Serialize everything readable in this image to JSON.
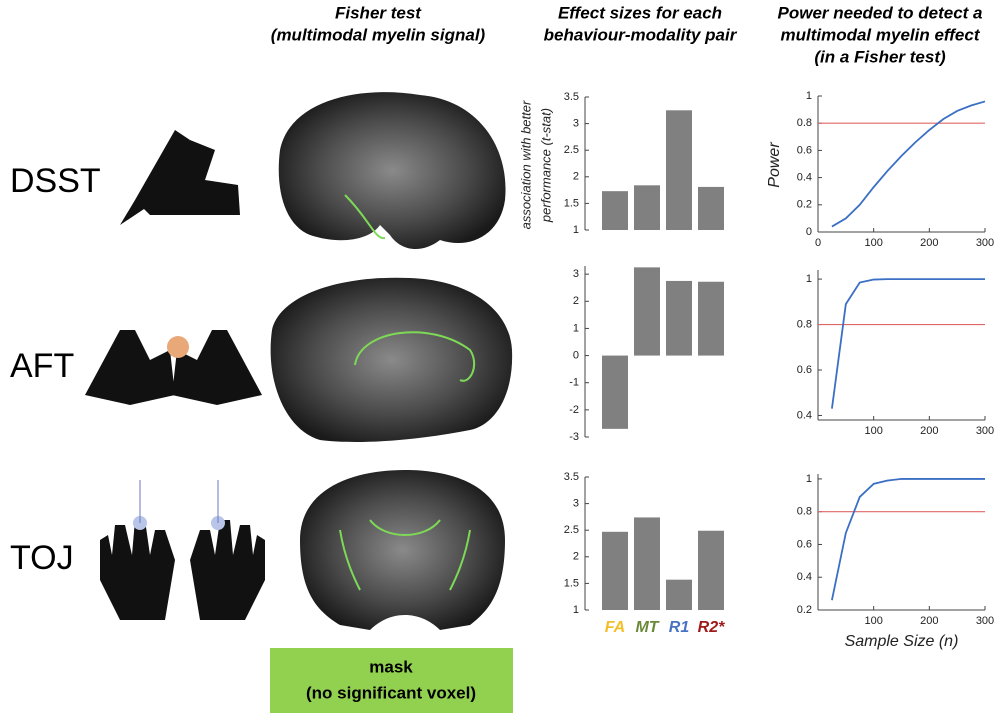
{
  "column_headers": [
    [
      "Fisher test",
      "(multimodal myelin signal)"
    ],
    [
      "Effect sizes for each",
      "behaviour-modality pair"
    ],
    [
      "Power needed to detect a",
      "multimodal myelin effect",
      "(in a Fisher test)"
    ]
  ],
  "row_labels": [
    "DSST",
    "AFT",
    "TOJ"
  ],
  "mask_label": [
    "mask",
    "(no significant voxel)"
  ],
  "chart_data": [
    {
      "type": "bar",
      "y_label": [
        "association with better",
        "performance (t-stat)"
      ],
      "categories": [
        null,
        null,
        null,
        null
      ],
      "values": [
        1.73,
        1.84,
        3.25,
        1.81
      ],
      "color": "#808080",
      "ylim": [
        1,
        3.5
      ],
      "yticks": [
        1,
        1.5,
        2,
        2.5,
        3,
        3.5
      ]
    },
    {
      "type": "bar",
      "categories": [
        null,
        null,
        null,
        null
      ],
      "values": [
        -2.7,
        3.25,
        2.75,
        2.72
      ],
      "color": "#808080",
      "ylim": [
        -3,
        3.3
      ],
      "yticks": [
        -3,
        -2,
        -1,
        0,
        1,
        2,
        3
      ]
    },
    {
      "type": "bar",
      "categories": [
        "FA",
        "MT",
        "R1",
        "R2*"
      ],
      "category_colors": [
        "#f2bf2a",
        "#6a8a3a",
        "#4a72c4",
        "#a01a1a"
      ],
      "values": [
        2.47,
        2.74,
        1.57,
        2.49
      ],
      "color": "#808080",
      "ylim": [
        1,
        3.5
      ],
      "yticks": [
        1,
        1.5,
        2,
        2.5,
        3,
        3.5
      ]
    },
    {
      "type": "line",
      "y_label": "Power",
      "x": [
        25,
        50,
        75,
        100,
        125,
        150,
        175,
        200,
        225,
        250,
        275,
        300
      ],
      "values": [
        0.04,
        0.1,
        0.2,
        0.33,
        0.45,
        0.56,
        0.66,
        0.75,
        0.83,
        0.89,
        0.93,
        0.96
      ],
      "color": "#3a6fc4",
      "reference_line": {
        "value": 0.8,
        "color": "#e06666"
      },
      "xlim": [
        0,
        300
      ],
      "xticks": [
        0,
        100,
        200,
        300
      ],
      "ylim": [
        0,
        1
      ],
      "yticks": [
        0,
        0.2,
        0.4,
        0.6,
        0.8,
        1
      ]
    },
    {
      "type": "line",
      "x": [
        25,
        50,
        75,
        100,
        125,
        150,
        175,
        200,
        225,
        250,
        275,
        300
      ],
      "values": [
        0.43,
        0.89,
        0.985,
        0.998,
        1,
        1,
        1,
        1,
        1,
        1,
        1,
        1
      ],
      "color": "#3a6fc4",
      "reference_line": {
        "value": 0.8,
        "color": "#e06666"
      },
      "xlim": [
        0,
        300
      ],
      "xticks": [
        100,
        200,
        300
      ],
      "ylim": [
        0.38,
        1.04
      ],
      "yticks": [
        0.4,
        0.6,
        0.8,
        1
      ]
    },
    {
      "type": "line",
      "x_label": "Sample Size (n)",
      "x": [
        25,
        50,
        75,
        100,
        125,
        150,
        175,
        200,
        225,
        250,
        275,
        300
      ],
      "values": [
        0.26,
        0.67,
        0.89,
        0.97,
        0.99,
        1,
        1,
        1,
        1,
        1,
        1,
        1
      ],
      "color": "#3a6fc4",
      "reference_line": {
        "value": 0.8,
        "color": "#e06666"
      },
      "xlim": [
        0,
        300
      ],
      "xticks": [
        100,
        200,
        300
      ],
      "ylim": [
        0.2,
        1.03
      ],
      "yticks": [
        0.2,
        0.4,
        0.6,
        0.8,
        1
      ]
    }
  ]
}
